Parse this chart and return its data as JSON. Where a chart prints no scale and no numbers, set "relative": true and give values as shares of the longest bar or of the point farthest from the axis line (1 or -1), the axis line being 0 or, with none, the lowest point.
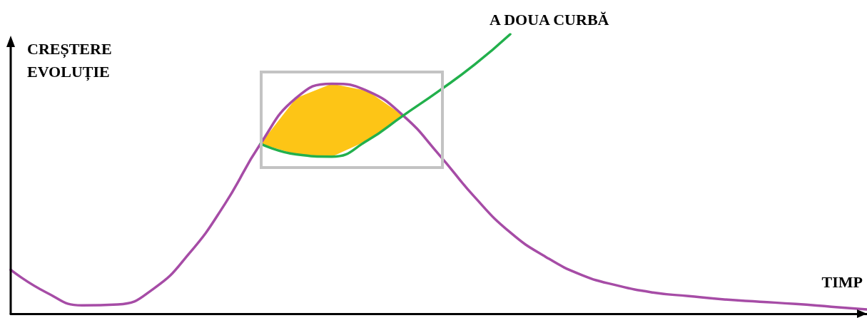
{
  "chart_data": {
    "type": "line",
    "relative": true,
    "ylabel": "CREȘTERE\nEVOLUȚIE",
    "xlabel": "TIMP",
    "grid": false,
    "legend": false,
    "marker": "none",
    "line_style": "solid",
    "categories": [
      null,
      null,
      null,
      null,
      null,
      null,
      null,
      null,
      null,
      null,
      null,
      null,
      null,
      null,
      null,
      null,
      null,
      null,
      null,
      null,
      null,
      null,
      null,
      null,
      null
    ],
    "series": [
      {
        "color": "#a64ca6",
        "values": [
          0.157,
          0.076,
          0.03,
          0.033,
          0.089,
          0.215,
          0.392,
          0.608,
          0.772,
          0.823,
          0.797,
          0.709,
          0.57,
          0.418,
          0.291,
          0.203,
          0.139,
          0.101,
          0.076,
          0.063,
          0.051,
          0.043,
          0.035,
          0.025,
          0.015
        ]
      },
      {
        "name": "A DOUA CURBĂ",
        "color": "#22b04c",
        "values": [
          null,
          null,
          null,
          null,
          null,
          null,
          null,
          0.608,
          0.57,
          0.562,
          0.62,
          0.709,
          0.797,
          0.891,
          1,
          null,
          null,
          null,
          null,
          null,
          null,
          null,
          null,
          null,
          null
        ]
      },
      {
        "type": "area",
        "color": "#fdc516",
        "values": [
          null,
          null,
          null,
          null,
          null,
          null,
          null,
          0.608,
          0.772,
          0.823,
          0.797,
          0.709,
          null,
          null,
          null,
          null,
          null,
          null,
          null,
          null,
          null,
          null,
          null,
          null,
          null
        ]
      }
    ]
  }
}
